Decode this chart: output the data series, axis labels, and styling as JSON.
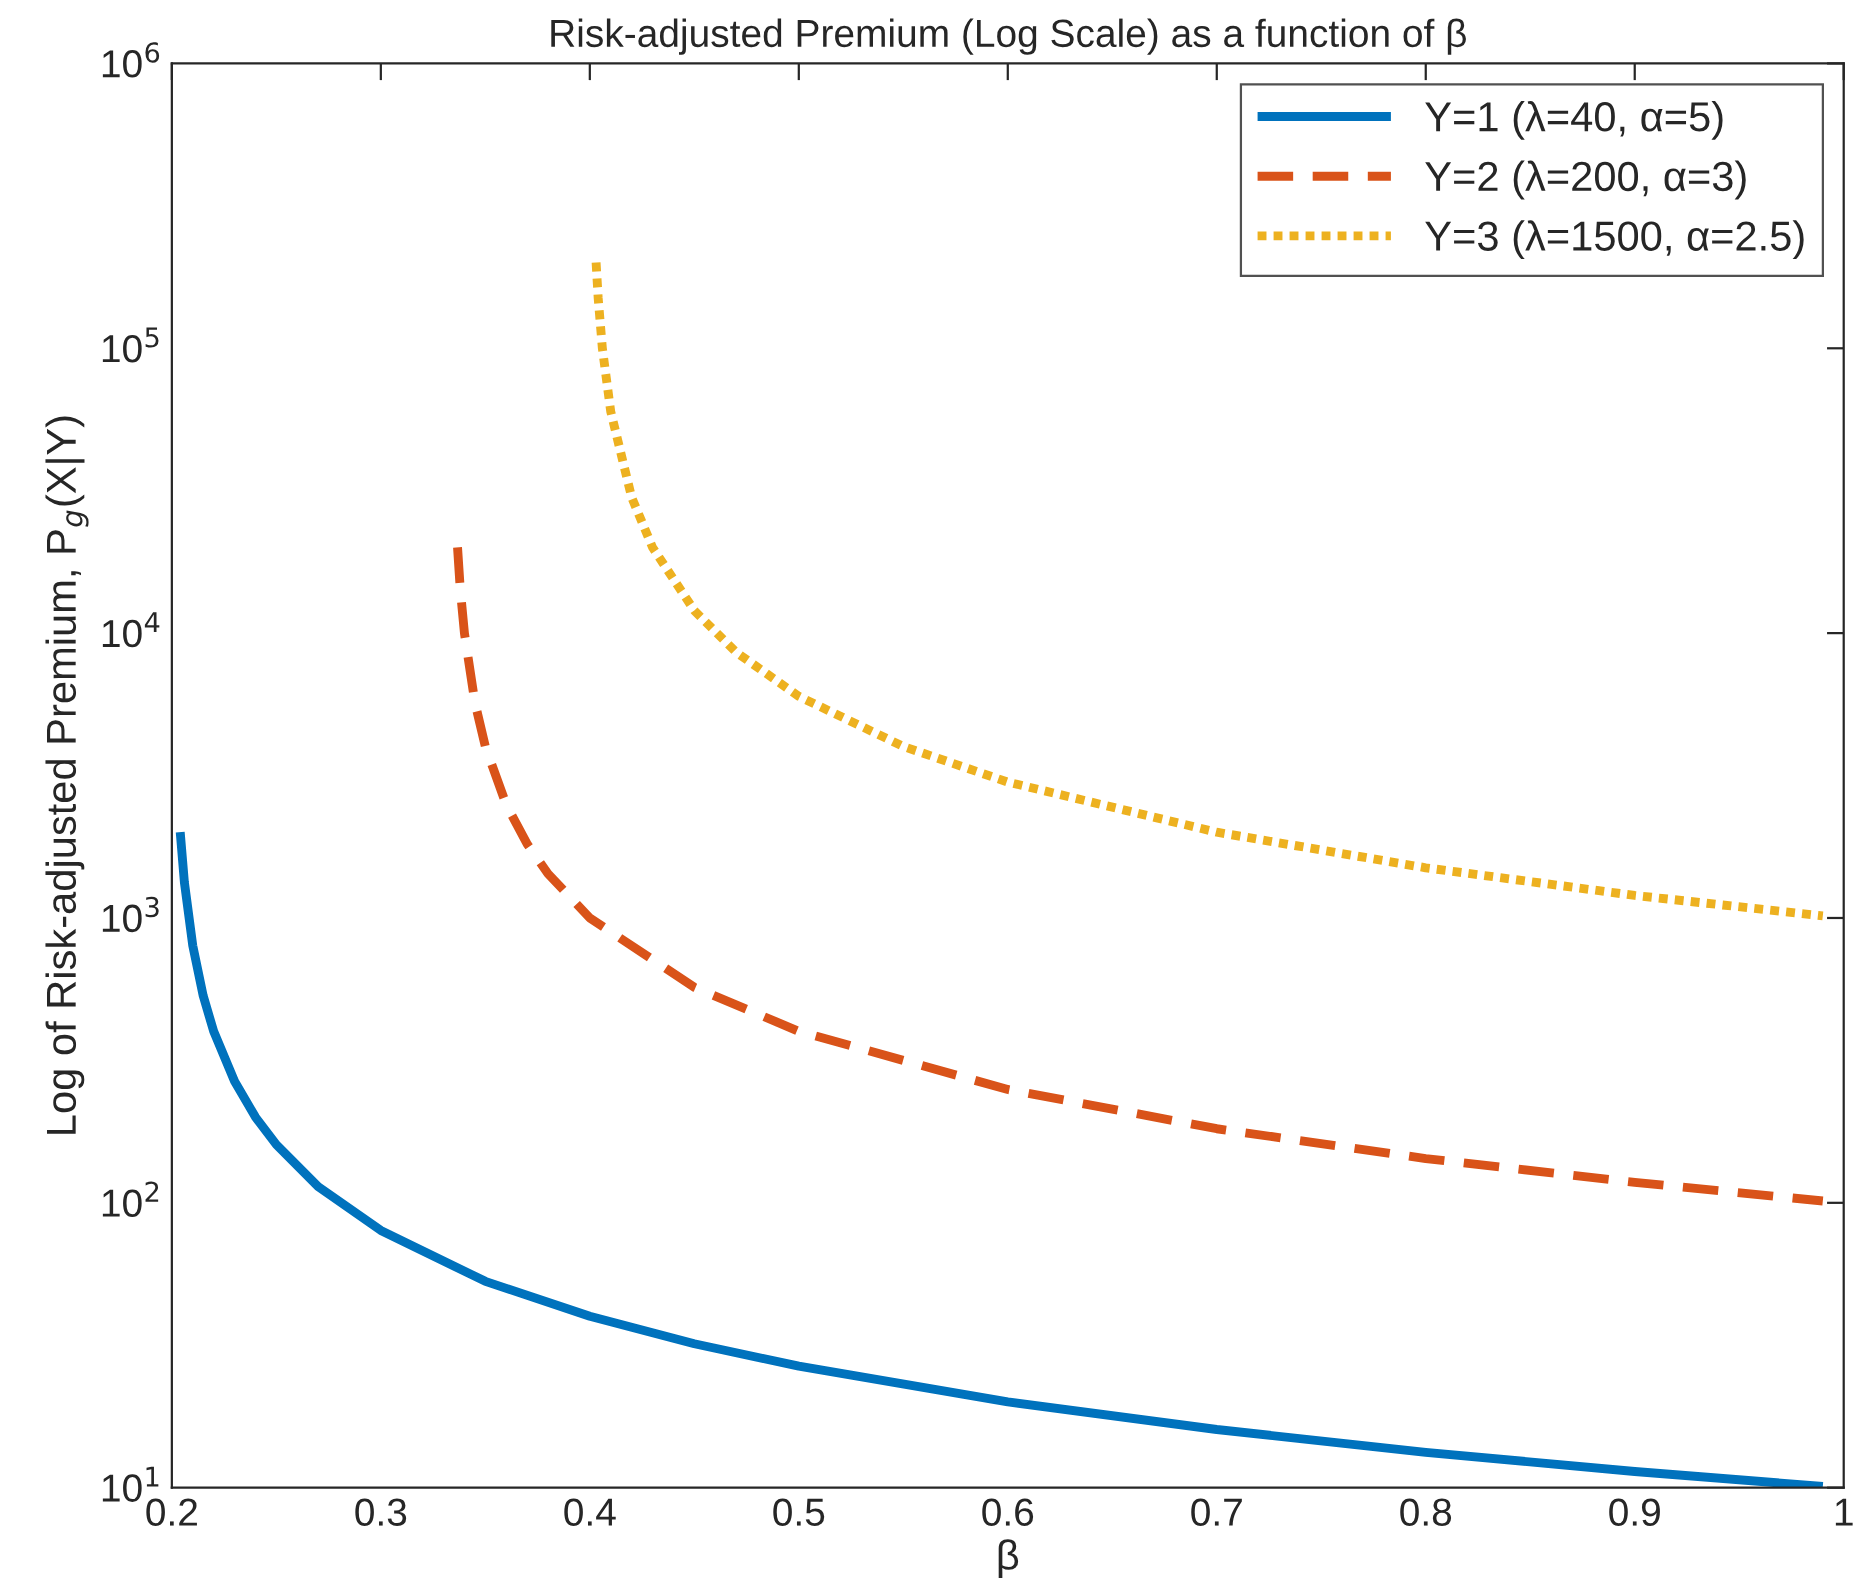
{
  "chart_data": {
    "type": "line",
    "title": "Risk-adjusted Premium (Log Scale) as a function of β",
    "xlabel": "β",
    "ylabel": "Log of Risk-adjusted Premium, P$_{g}$(X|Y)",
    "log": "y",
    "grid": false,
    "legend": "top right",
    "xlim": [
      0.2,
      1
    ],
    "xticks": [
      0.2,
      0.3,
      0.4,
      0.5,
      0.6,
      0.7,
      0.8,
      0.9,
      1
    ],
    "ylim": [
      10,
      1000000
    ],
    "yticks": [
      {
        "value": 10,
        "label": "10$^{1}$"
      },
      {
        "value": 100,
        "label": "10$^{2}$"
      },
      {
        "value": 1000,
        "label": "10$^{3}$"
      },
      {
        "value": 10000,
        "label": "10$^{4}$"
      },
      {
        "value": 100000,
        "label": "10$^{5}$"
      },
      {
        "value": 1000000,
        "label": "10$^{6}$"
      }
    ],
    "series": [
      {
        "name": "Y=1 (λ=40, α=5)",
        "color": "#0072bd",
        "line_style": "solid",
        "x": [
          0.204,
          0.206,
          0.21,
          0.215,
          0.22,
          0.23,
          0.24,
          0.25,
          0.27,
          0.3,
          0.35,
          0.4,
          0.45,
          0.5,
          0.6,
          0.7,
          0.8,
          0.9,
          0.99
        ],
        "values": [
          2000,
          1333,
          800,
          533,
          400,
          267,
          200,
          160,
          114,
          80,
          53,
          40,
          32,
          26.7,
          20,
          16,
          13.3,
          11.4,
          10.1
        ]
      },
      {
        "name": "Y=2 (λ=200, α=3)",
        "color": "#d95319",
        "line_style": "dashed",
        "x": [
          0.3367,
          0.338,
          0.34,
          0.345,
          0.35,
          0.36,
          0.37,
          0.38,
          0.4,
          0.45,
          0.5,
          0.6,
          0.7,
          0.8,
          0.9,
          0.99
        ],
        "values": [
          20000,
          14300,
          10000,
          5710,
          4000,
          2500,
          1820,
          1430,
          1000,
          571,
          400,
          250,
          182,
          143,
          118,
          101.5
        ]
      },
      {
        "name": "Y=3 (λ=1500, α=2.5)",
        "color": "#edb120",
        "line_style": "dotted",
        "x": [
          0.403,
          0.404,
          0.406,
          0.41,
          0.42,
          0.43,
          0.45,
          0.47,
          0.5,
          0.55,
          0.6,
          0.7,
          0.8,
          0.9,
          0.99
        ],
        "values": [
          200000,
          150000,
          100000,
          60000,
          30000,
          20000,
          12000,
          8570,
          6000,
          4000,
          3000,
          2000,
          1500,
          1200,
          1017
        ]
      }
    ]
  }
}
